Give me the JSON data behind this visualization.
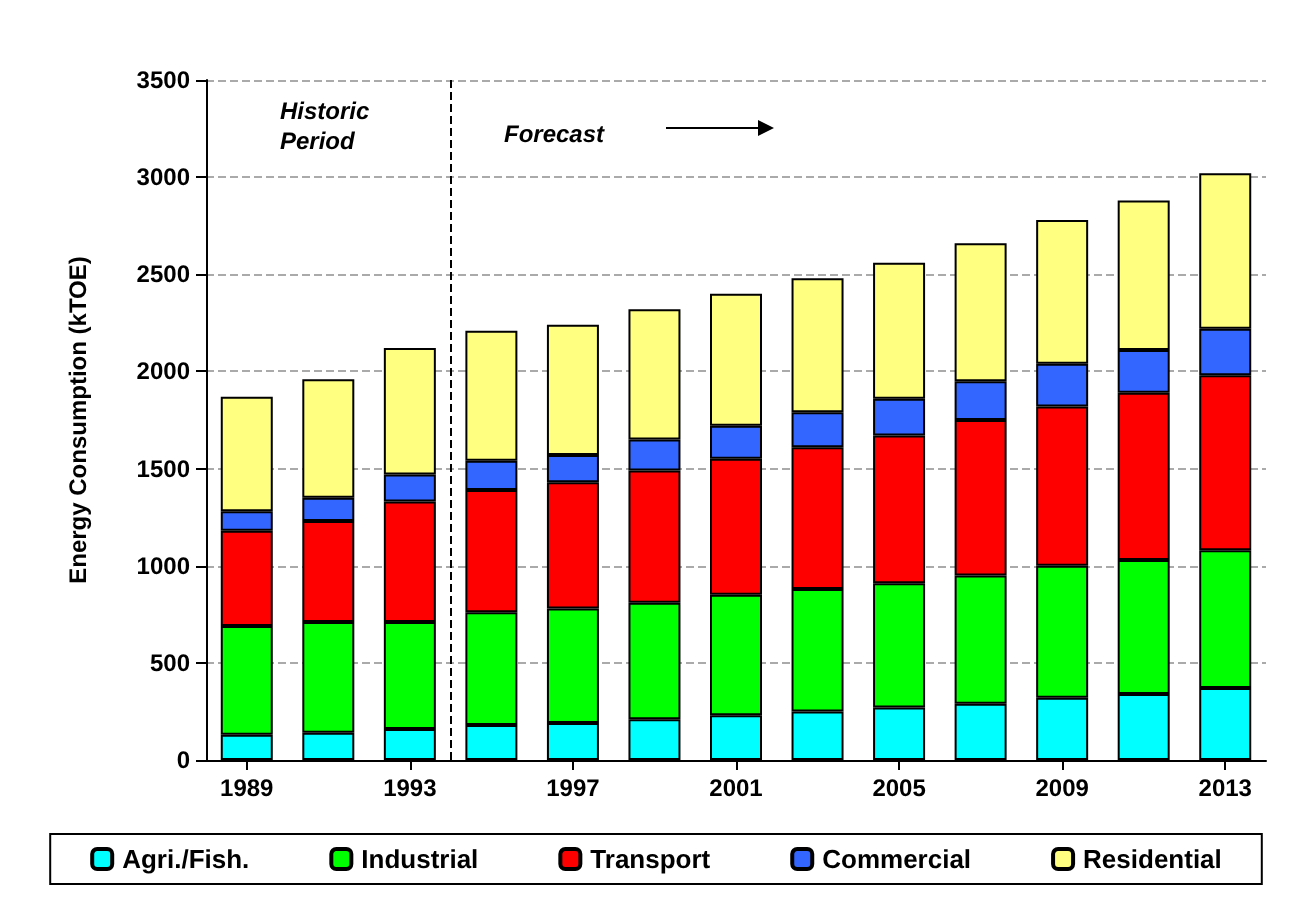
{
  "chart_data": {
    "type": "bar",
    "stacked": true,
    "ylabel": "Energy Consumption (kTOE)",
    "x": [
      1989,
      1991,
      1993,
      1995,
      1997,
      1999,
      2001,
      2003,
      2005,
      2007,
      2009,
      2011,
      2013
    ],
    "xlim": [
      1988,
      2014
    ],
    "xticks": [
      1989,
      1993,
      1997,
      2001,
      2005,
      2009,
      2013
    ],
    "ylim": [
      0,
      3500
    ],
    "yticks": [
      0,
      500,
      1000,
      1500,
      2000,
      2500,
      3000,
      3500
    ],
    "grid": "y",
    "legend": "bottom",
    "series": [
      {
        "name": "Agri./Fish.",
        "color": "#00ffff",
        "values": [
          130,
          140,
          160,
          180,
          190,
          210,
          230,
          250,
          270,
          290,
          320,
          340,
          370
        ]
      },
      {
        "name": "Industrial",
        "color": "#00ff00",
        "values": [
          560,
          570,
          550,
          580,
          590,
          600,
          620,
          630,
          640,
          660,
          680,
          690,
          710
        ]
      },
      {
        "name": "Transport",
        "color": "#ff0000",
        "values": [
          490,
          520,
          620,
          630,
          650,
          680,
          700,
          730,
          760,
          800,
          820,
          860,
          900
        ]
      },
      {
        "name": "Commercial",
        "color": "#3366ff",
        "values": [
          100,
          120,
          140,
          150,
          140,
          160,
          170,
          180,
          190,
          200,
          220,
          220,
          240
        ]
      },
      {
        "name": "Residential",
        "color": "#ffff80",
        "values": [
          590,
          610,
          650,
          670,
          670,
          670,
          680,
          690,
          700,
          710,
          740,
          770,
          800
        ]
      }
    ],
    "ref_lines": [
      {
        "axis": "x",
        "value": 1994,
        "line_style": "dashed",
        "color": "#000000"
      }
    ],
    "annotations": [
      "Historic Period",
      "Forecast"
    ]
  }
}
